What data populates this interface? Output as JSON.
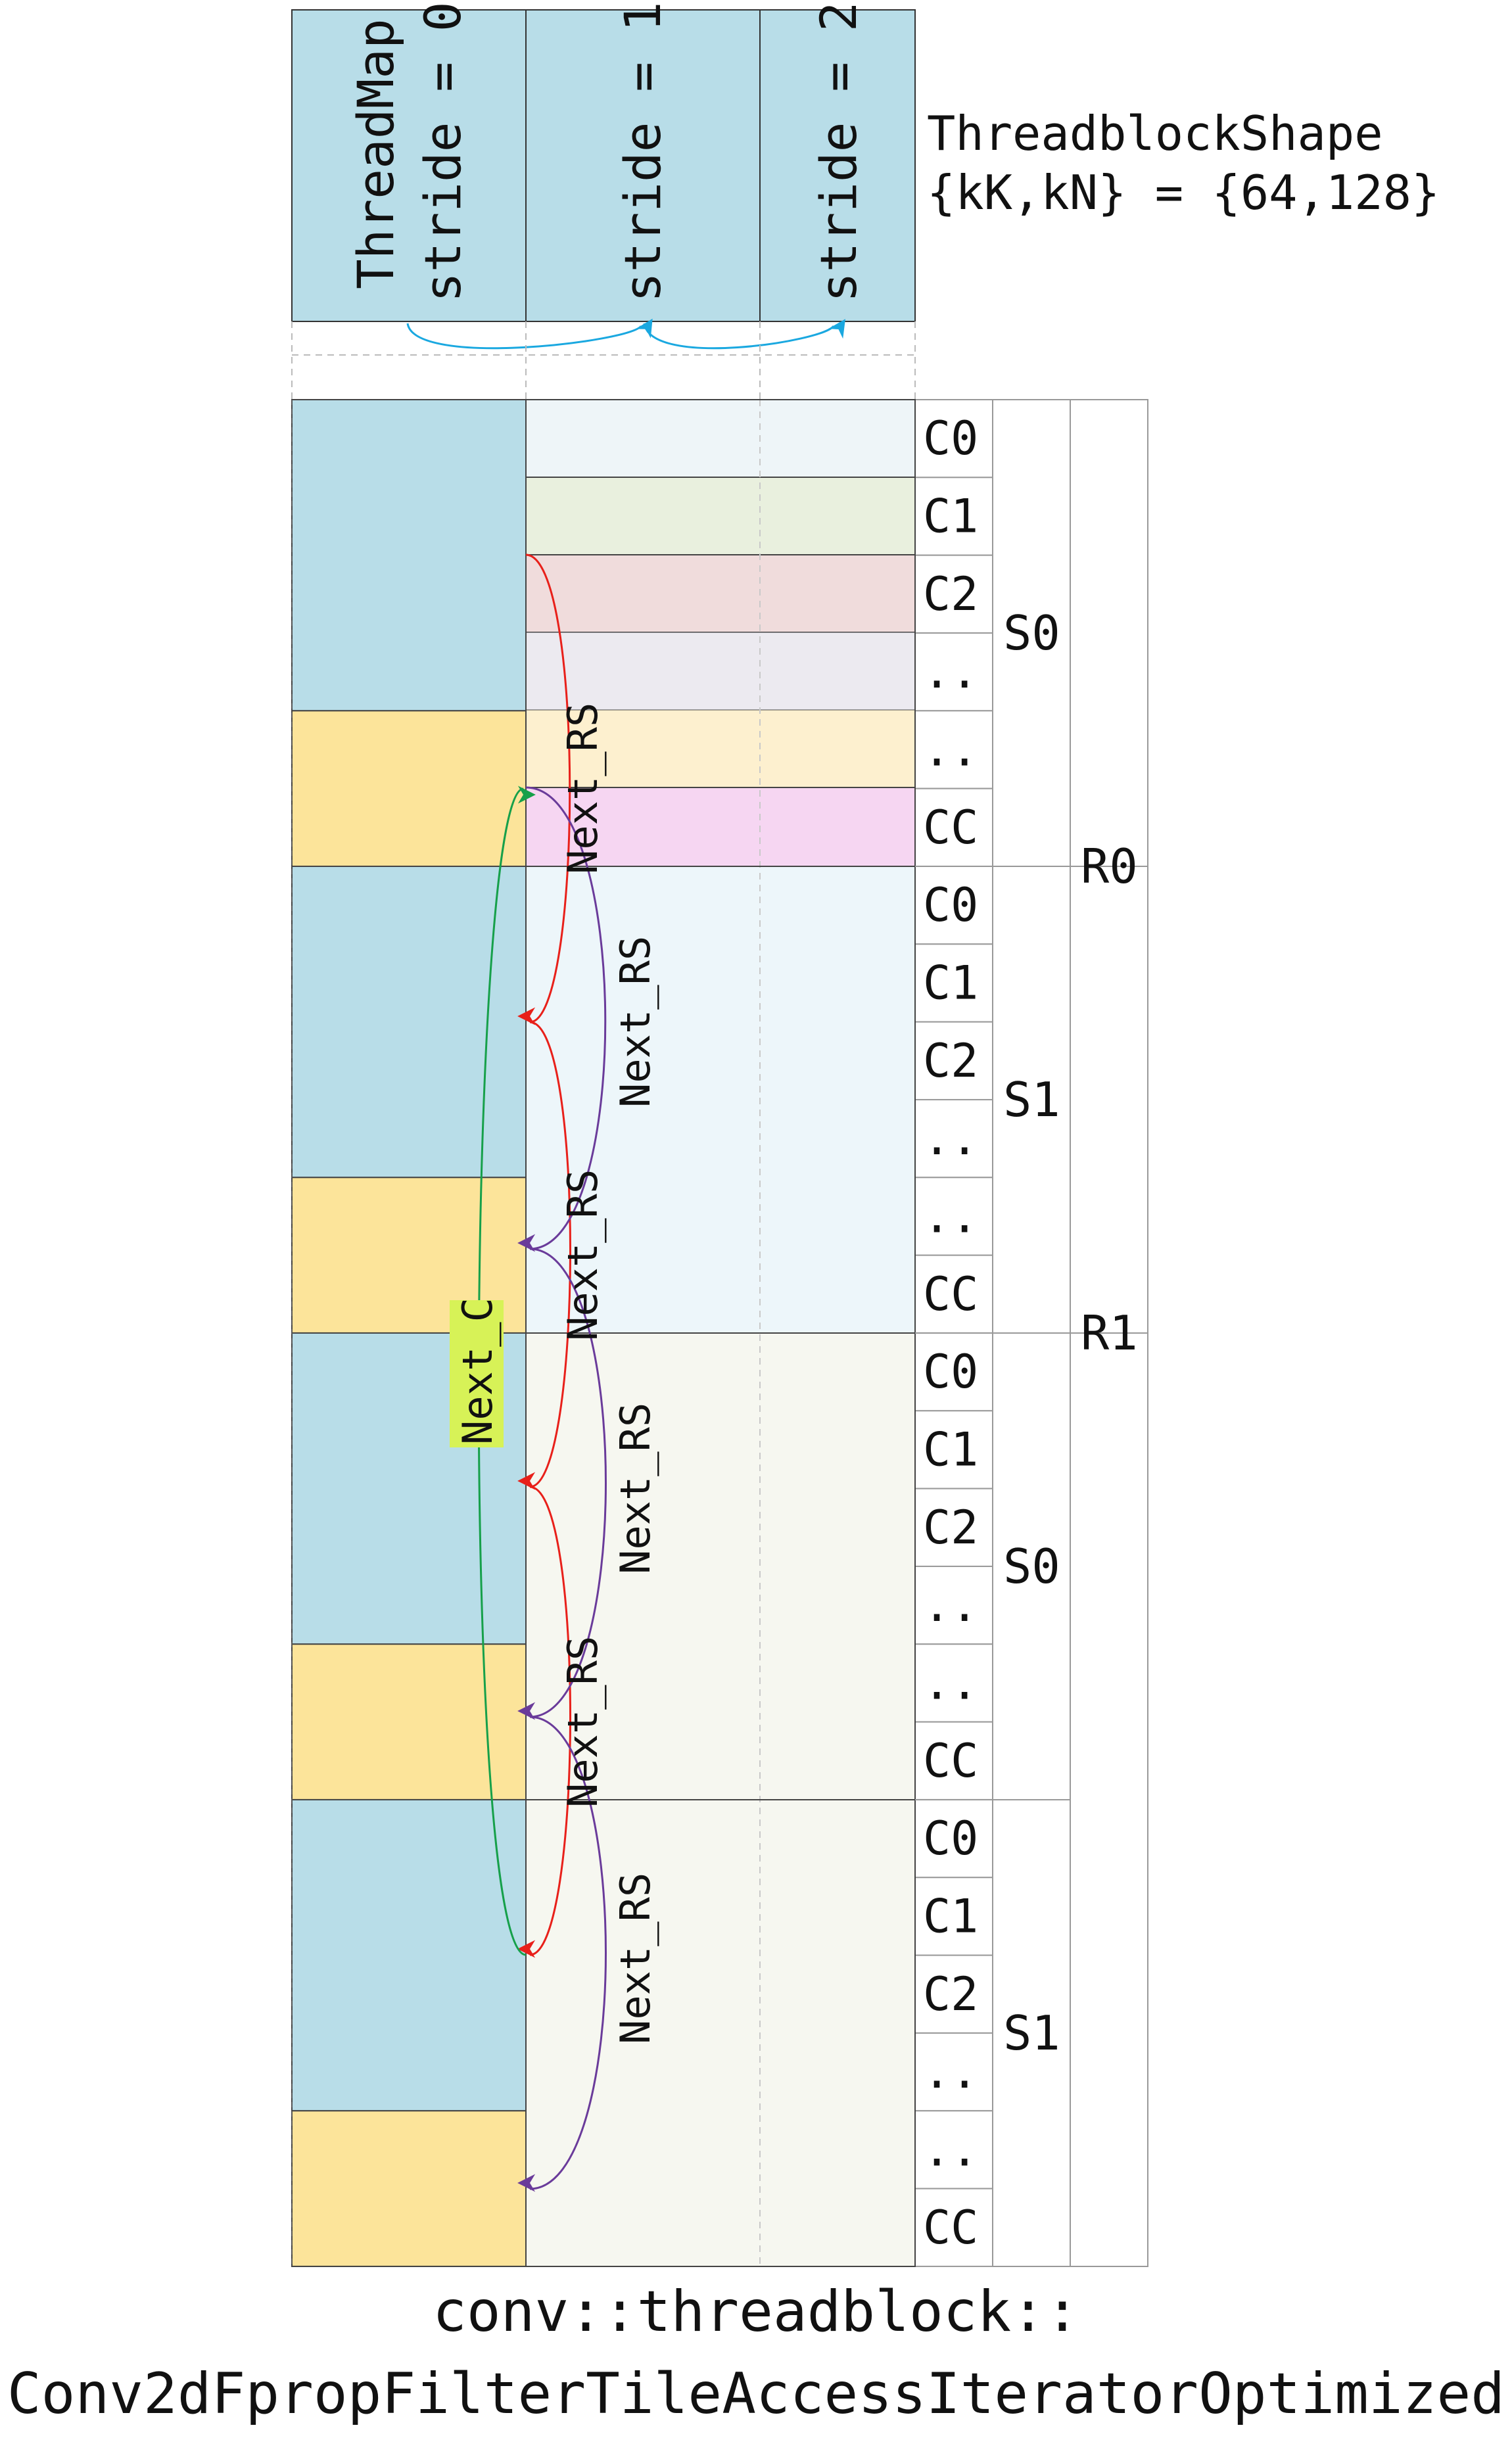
{
  "header": {
    "threadmap_label": "ThreadMap",
    "strides": [
      "stride = 0",
      "stride = 1",
      "stride = 2"
    ],
    "shape_line1": "ThreadblockShape",
    "shape_line2": "{kK,kN} = {64,128}"
  },
  "rows": [
    {
      "label": "C0",
      "kind": "blue"
    },
    {
      "label": "C1",
      "kind": "blue"
    },
    {
      "label": "C2",
      "kind": "blue"
    },
    {
      "label": "..",
      "kind": "blue"
    },
    {
      "label": "..",
      "kind": "yellow"
    },
    {
      "label": "CC",
      "kind": "yellow"
    },
    {
      "label": "C0",
      "kind": "blue"
    },
    {
      "label": "C1",
      "kind": "blue"
    },
    {
      "label": "C2",
      "kind": "blue"
    },
    {
      "label": "..",
      "kind": "blue"
    },
    {
      "label": "..",
      "kind": "yellow"
    },
    {
      "label": "CC",
      "kind": "yellow"
    },
    {
      "label": "C0",
      "kind": "blue"
    },
    {
      "label": "C1",
      "kind": "blue"
    },
    {
      "label": "C2",
      "kind": "blue"
    },
    {
      "label": "..",
      "kind": "blue"
    },
    {
      "label": "..",
      "kind": "yellow"
    },
    {
      "label": "CC",
      "kind": "yellow"
    },
    {
      "label": "C0",
      "kind": "blue"
    },
    {
      "label": "C1",
      "kind": "blue"
    },
    {
      "label": "C2",
      "kind": "blue"
    },
    {
      "label": "..",
      "kind": "blue"
    },
    {
      "label": "..",
      "kind": "yellow"
    },
    {
      "label": "CC",
      "kind": "yellow"
    }
  ],
  "s_labels": [
    "S0",
    "S1",
    "S0",
    "S1"
  ],
  "r_labels": [
    "R0",
    "R1"
  ],
  "arrow_labels": {
    "next_rs": "Next_RS",
    "next_c": "Next_C"
  },
  "caption": {
    "line1": "conv::threadblock::",
    "line2": "Conv2dFpropFilterTileAccessIteratorOptimized"
  },
  "colors": {
    "blue": "#b8dde8",
    "yellow": "#fce49a",
    "red": "#e8201a",
    "purple": "#6a3b9a",
    "green": "#16a04a",
    "cyan": "#1aa8e0",
    "highlight": "#d7f257"
  }
}
